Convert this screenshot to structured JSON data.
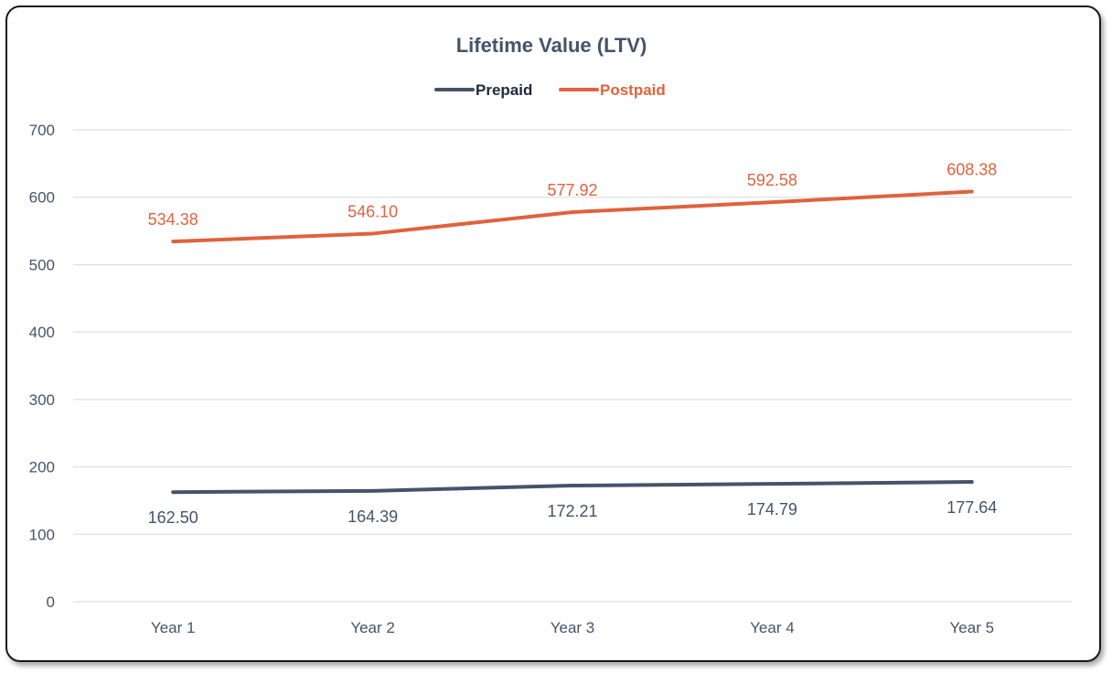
{
  "chart_data": {
    "type": "line",
    "title": "Lifetime Value (LTV)",
    "xlabel": "",
    "ylabel": "",
    "categories": [
      "Year 1",
      "Year 2",
      "Year 3",
      "Year 4",
      "Year 5"
    ],
    "ylim": [
      0,
      700
    ],
    "yticks": [
      0,
      100,
      200,
      300,
      400,
      500,
      600,
      700
    ],
    "grid": true,
    "legend_position": "top-center",
    "series": [
      {
        "name": "Prepaid",
        "color": "#44546a",
        "values": [
          162.5,
          164.39,
          172.21,
          174.79,
          177.64
        ],
        "labels": [
          "162.50",
          "164.39",
          "172.21",
          "174.79",
          "177.64"
        ],
        "label_position": "below"
      },
      {
        "name": "Postpaid",
        "color": "#e0623d",
        "values": [
          534.38,
          546.1,
          577.92,
          592.58,
          608.38
        ],
        "labels": [
          "534.38",
          "546.10",
          "577.92",
          "592.58",
          "608.38"
        ],
        "label_position": "above"
      }
    ]
  },
  "colors": {
    "title": "#44546a",
    "axis_text": "#44546a",
    "gridline": "#d9d9d9"
  }
}
